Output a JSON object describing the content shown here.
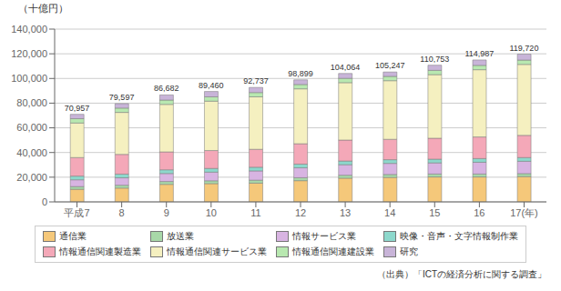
{
  "chart_data": {
    "type": "bar",
    "stacked": true,
    "grid": true,
    "legend": "bottom",
    "ylabel": "（十億円）",
    "source": "（出典）「ICTの経済分析に関する調査」",
    "categories": [
      "平成7",
      "8",
      "9",
      "10",
      "11",
      "12",
      "13",
      "14",
      "15",
      "16",
      "17(年)"
    ],
    "series": [
      {
        "name": "通信業",
        "color": "#F5C87A",
        "values": [
          10200,
          11200,
          14200,
          14800,
          15200,
          17200,
          19200,
          19800,
          20200,
          20200,
          20500
        ]
      },
      {
        "name": "放送業",
        "color": "#A8D8A8",
        "values": [
          2200,
          2300,
          2300,
          2300,
          2400,
          2400,
          2400,
          2400,
          2400,
          2400,
          2400
        ]
      },
      {
        "name": "情報サービス業",
        "color": "#D8B4E2",
        "values": [
          5500,
          6000,
          6500,
          7000,
          7500,
          8000,
          8500,
          9000,
          9000,
          9500,
          10000
        ]
      },
      {
        "name": "映像・音声・文字情報制作業",
        "color": "#8DD8CC",
        "values": [
          3000,
          3000,
          3000,
          3000,
          3000,
          3000,
          3000,
          3000,
          3000,
          3000,
          3000
        ]
      },
      {
        "name": "情報通信関連製造業",
        "color": "#F4A8B8",
        "values": [
          15000,
          16000,
          14500,
          14500,
          14500,
          16500,
          17000,
          16500,
          17000,
          17500,
          18000
        ]
      },
      {
        "name": "情報通信関連サービス業",
        "color": "#F5F0C0",
        "values": [
          28000,
          34000,
          38500,
          40000,
          42500,
          44500,
          46500,
          47500,
          51500,
          54500,
          57500
        ]
      },
      {
        "name": "情報通信関連建設業",
        "color": "#B8E8B0",
        "values": [
          3500,
          3500,
          3500,
          3500,
          3500,
          3500,
          3500,
          3500,
          3500,
          3500,
          3500
        ]
      },
      {
        "name": "研究",
        "color": "#C8B4D8",
        "values": [
          3557,
          3597,
          4182,
          4360,
          4137,
          3799,
          3964,
          3547,
          4153,
          4387,
          4820
        ]
      }
    ],
    "totals": [
      70957,
      79597,
      86682,
      89460,
      92737,
      98899,
      104064,
      105247,
      110753,
      114987,
      119720
    ],
    "total_labels": [
      "70,957",
      "79,597",
      "86,682",
      "89,460",
      "92,737",
      "98,899",
      "104,064",
      "105,247",
      "110,753",
      "114,987",
      "119,720"
    ],
    "ylim": [
      0,
      140000
    ],
    "yticks": [
      0,
      {
        "value": 20000,
        "label": "20,000"
      },
      {
        "value": 40000,
        "label": "40,000"
      },
      {
        "value": 60000,
        "label": "60,000"
      },
      {
        "value": 80000,
        "label": "80,000"
      },
      {
        "value": 100000,
        "label": "100,000"
      },
      {
        "value": 120000,
        "label": "120,000"
      },
      {
        "value": 140000,
        "label": "140,000"
      }
    ]
  }
}
